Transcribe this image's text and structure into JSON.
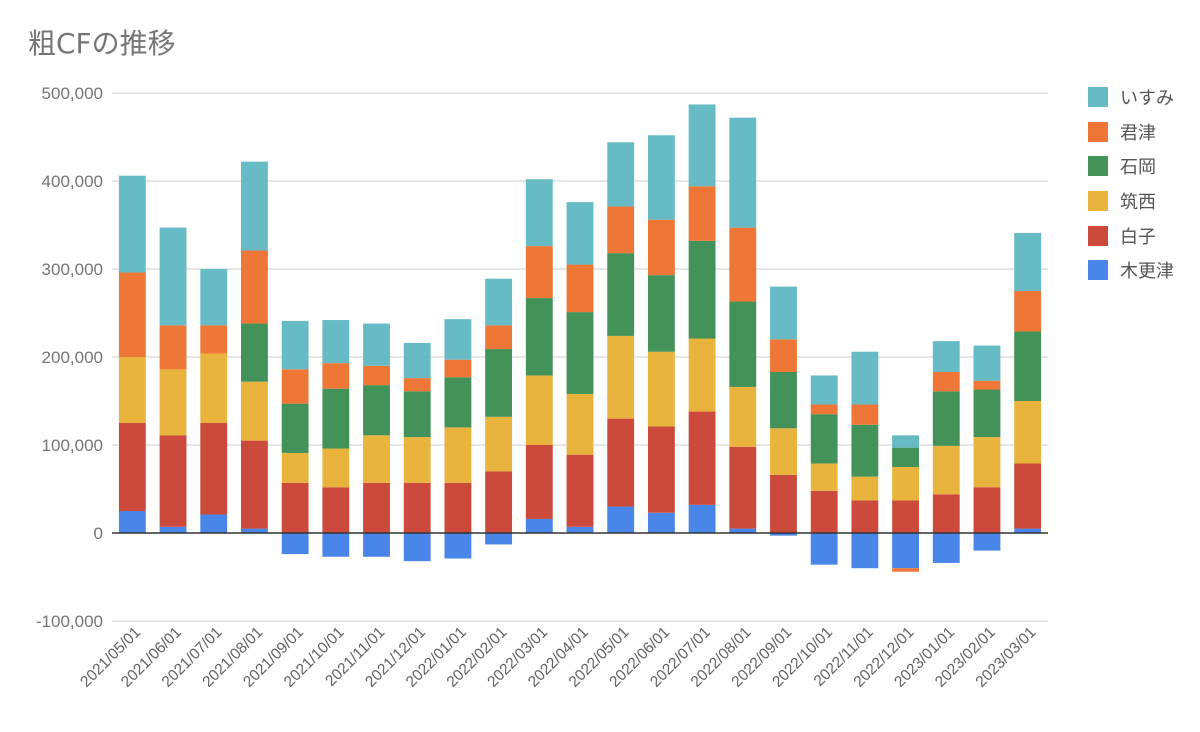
{
  "chart_data": {
    "type": "bar",
    "stacked": true,
    "title": "粗CFの推移",
    "xlabel": "",
    "ylabel": "",
    "ylim": [
      -100000,
      500000
    ],
    "yticks": [
      -100000,
      0,
      100000,
      200000,
      300000,
      400000,
      500000
    ],
    "ytick_labels": [
      "-100,000",
      "0",
      "100,000",
      "200,000",
      "300,000",
      "400,000",
      "500,000"
    ],
    "grid": true,
    "legend_position": "right",
    "categories": [
      "2021/05/01",
      "2021/06/01",
      "2021/07/01",
      "2021/08/01",
      "2021/09/01",
      "2021/10/01",
      "2021/11/01",
      "2021/12/01",
      "2022/01/01",
      "2022/02/01",
      "2022/03/01",
      "2022/04/01",
      "2022/05/01",
      "2022/06/01",
      "2022/07/01",
      "2022/08/01",
      "2022/09/01",
      "2022/10/01",
      "2022/11/01",
      "2022/12/01",
      "2023/01/01",
      "2023/02/01",
      "2023/03/01"
    ],
    "series": [
      {
        "name": "木更津",
        "color": "#4a86e8",
        "values": [
          25000,
          7000,
          21000,
          5000,
          -24000,
          -27000,
          -27000,
          -32000,
          -29000,
          -13000,
          16000,
          7000,
          30000,
          23000,
          32000,
          5000,
          -3000,
          -36000,
          -40000,
          -40000,
          -34000,
          -20000,
          5000
        ]
      },
      {
        "name": "白子",
        "color": "#cc4a3c",
        "values": [
          100000,
          104000,
          104000,
          100000,
          57000,
          52000,
          57000,
          57000,
          57000,
          70000,
          84000,
          82000,
          100000,
          98000,
          106000,
          93000,
          66000,
          48000,
          37000,
          37000,
          44000,
          52000,
          74000
        ]
      },
      {
        "name": "筑西",
        "color": "#e8b43e",
        "values": [
          75000,
          75000,
          79000,
          67000,
          34000,
          44000,
          54000,
          52000,
          63000,
          62000,
          79000,
          69000,
          94000,
          85000,
          83000,
          68000,
          53000,
          31000,
          27000,
          38000,
          55000,
          57000,
          71000
        ]
      },
      {
        "name": "石岡",
        "color": "#43925a",
        "values": [
          0,
          0,
          0,
          66000,
          56000,
          68000,
          57000,
          52000,
          57000,
          77000,
          88000,
          93000,
          94000,
          87000,
          111000,
          97000,
          64000,
          56000,
          59000,
          22000,
          62000,
          54000,
          79000
        ]
      },
      {
        "name": "君津",
        "color": "#ee7636",
        "values": [
          96000,
          50000,
          32000,
          83000,
          39000,
          29000,
          22000,
          15000,
          20000,
          27000,
          59000,
          54000,
          53000,
          63000,
          62000,
          84000,
          37000,
          11000,
          23000,
          -4000,
          22000,
          10000,
          46000
        ]
      },
      {
        "name": "いすみ",
        "color": "#66bbc4",
        "values": [
          110000,
          111000,
          64000,
          101000,
          55000,
          49000,
          48000,
          40000,
          46000,
          53000,
          76000,
          71000,
          73000,
          96000,
          93000,
          125000,
          60000,
          33000,
          60000,
          14000,
          35000,
          40000,
          66000
        ]
      }
    ]
  }
}
